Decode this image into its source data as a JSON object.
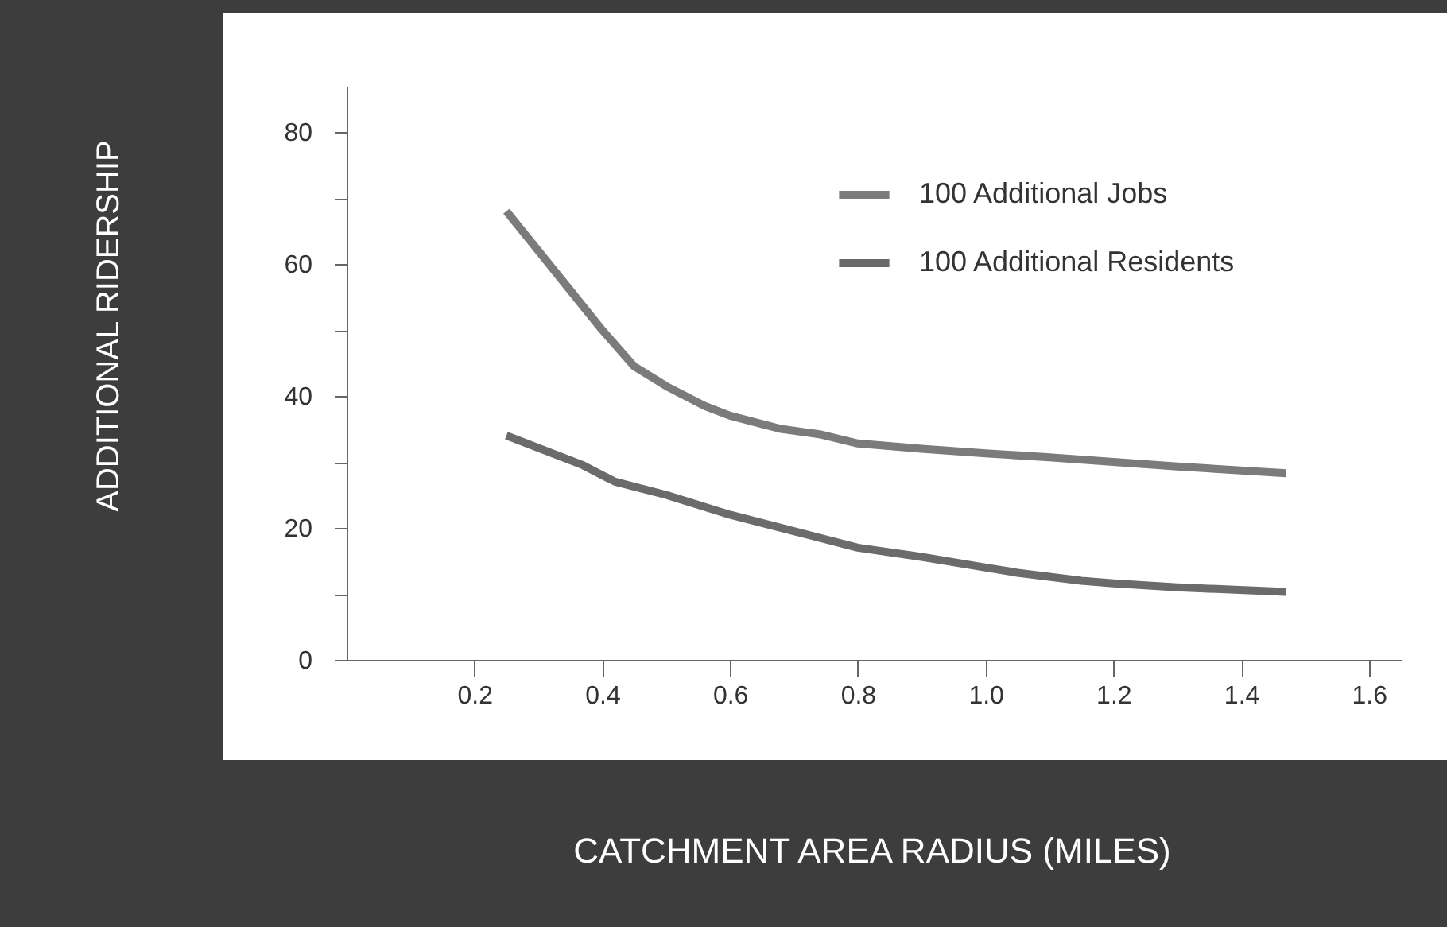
{
  "chart_data": {
    "type": "line",
    "xlabel": "CATCHMENT AREA RADIUS (MILES)",
    "ylabel": "ADDITIONAL RIDERSHIP",
    "xlim": [
      0,
      1.65
    ],
    "ylim": [
      0,
      87
    ],
    "xticks": [
      {
        "value": 0.2,
        "label": "0.2"
      },
      {
        "value": 0.4,
        "label": "0.4"
      },
      {
        "value": 0.6,
        "label": "0.6"
      },
      {
        "value": 0.8,
        "label": "0.8"
      },
      {
        "value": 1.0,
        "label": "1.0"
      },
      {
        "value": 1.2,
        "label": "1.2"
      },
      {
        "value": 1.4,
        "label": "1.4"
      },
      {
        "value": 1.6,
        "label": "1.6"
      }
    ],
    "yticks": [
      0,
      {
        "value": 10,
        "label": null
      },
      20,
      {
        "value": 30,
        "label": null
      },
      40,
      {
        "value": 50,
        "label": null
      },
      60,
      {
        "value": 70,
        "label": null
      },
      80
    ],
    "grid": false,
    "legend": "top right",
    "line_style": "solid",
    "marker": "none",
    "series": [
      {
        "name": "100 Additional Jobs",
        "color": "#7b7b7b",
        "x": [
          0.25,
          0.3,
          0.35,
          0.4,
          0.45,
          0.5,
          0.56,
          0.6,
          0.68,
          0.74,
          0.8,
          0.9,
          1.0,
          1.1,
          1.2,
          1.3,
          1.47
        ],
        "values": [
          68,
          62,
          56,
          50,
          44.5,
          41.5,
          38.5,
          37,
          35,
          34.2,
          32.8,
          32,
          31.3,
          30.7,
          30,
          29.3,
          28.3
        ]
      },
      {
        "name": "100 Additional Residents",
        "color": "#6b6b6b",
        "x": [
          0.25,
          0.37,
          0.42,
          0.5,
          0.6,
          0.7,
          0.8,
          0.9,
          1.0,
          1.05,
          1.15,
          1.2,
          1.3,
          1.47
        ],
        "values": [
          34,
          29.5,
          27,
          25,
          22,
          19.5,
          17,
          15.6,
          14,
          13.2,
          12,
          11.6,
          11,
          10.3
        ]
      }
    ]
  }
}
